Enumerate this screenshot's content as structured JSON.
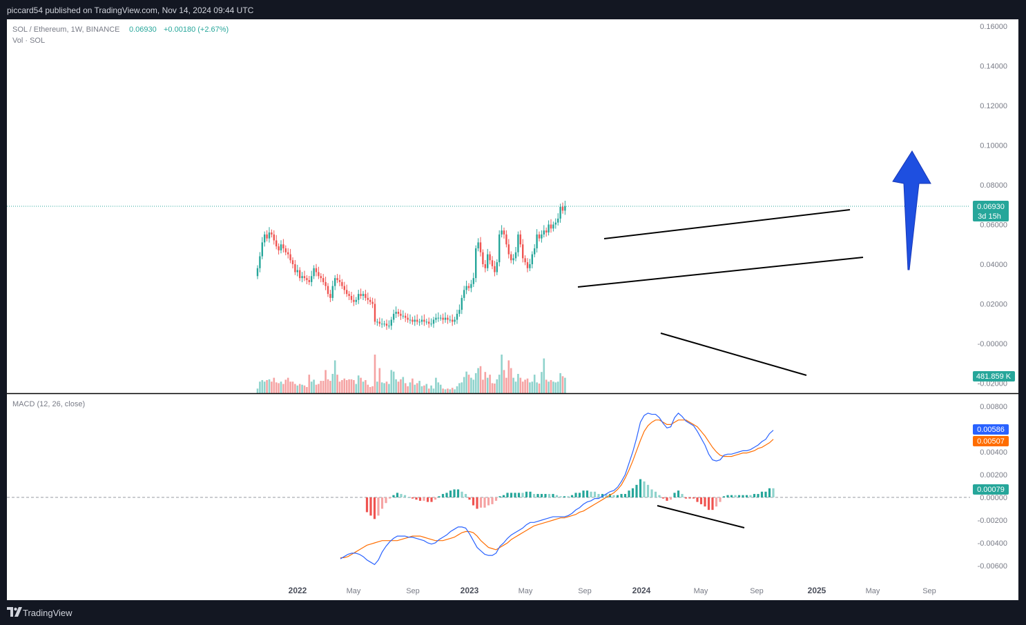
{
  "header": {
    "published": "piccard54 published on TradingView.com, Nov 14, 2024 09:44 UTC"
  },
  "footer": {
    "brand": "TradingView"
  },
  "legend": {
    "symbol": "SOL / Ethereum, 1W, BINANCE",
    "price": "0.06930",
    "change": "+0.00180 (+2.67%)",
    "vol": "Vol · SOL",
    "macd": "MACD (12, 26, close)"
  },
  "badges": {
    "last_price": "0.06930",
    "countdown": "3d 15h",
    "volume": "481.859 K",
    "macd_line": "0.00586",
    "signal_line": "0.00507",
    "histogram": "0.00079"
  },
  "colors": {
    "up": "#26a69a",
    "down": "#ef5350",
    "up_vol": "#8fd3cc",
    "down_vol": "#f5a3a3",
    "macd_line": "#2962ff",
    "signal_line": "#ff6d00",
    "arrow": "#1e4fe0",
    "background": "#131722"
  },
  "chart_data": [
    {
      "type": "candlestick",
      "title": "SOL / Ethereum, 1W, BINANCE",
      "x_labels": [
        "2022",
        "May",
        "Sep",
        "2023",
        "May",
        "Sep",
        "2024",
        "May",
        "Sep",
        "2025",
        "May",
        "Sep"
      ],
      "price_ticks": [
        "0.16000",
        "0.14000",
        "0.12000",
        "0.10000",
        "0.08000",
        "0.06000",
        "0.04000",
        "0.02000",
        "-0.00000",
        "-0.02000"
      ],
      "ylim": [
        -0.02,
        0.16
      ],
      "last_price": 0.0693,
      "series": [
        {
          "name": "SOL / Ethereum",
          "weekly_close": [
            0.038,
            0.044,
            0.051,
            0.055,
            0.053,
            0.056,
            0.055,
            0.052,
            0.049,
            0.047,
            0.05,
            0.048,
            0.046,
            0.045,
            0.042,
            0.04,
            0.036,
            0.037,
            0.033,
            0.034,
            0.033,
            0.032,
            0.031,
            0.034,
            0.038,
            0.036,
            0.034,
            0.033,
            0.031,
            0.029,
            0.025,
            0.023,
            0.029,
            0.033,
            0.032,
            0.031,
            0.029,
            0.027,
            0.025,
            0.024,
            0.022,
            0.021,
            0.022,
            0.025,
            0.024,
            0.025,
            0.023,
            0.022,
            0.021,
            0.02,
            0.011,
            0.011,
            0.01,
            0.01,
            0.01,
            0.009,
            0.009,
            0.012,
            0.015,
            0.016,
            0.015,
            0.014,
            0.014,
            0.013,
            0.012,
            0.012,
            0.011,
            0.012,
            0.011,
            0.011,
            0.012,
            0.011,
            0.011,
            0.01,
            0.01,
            0.012,
            0.013,
            0.013,
            0.013,
            0.012,
            0.013,
            0.012,
            0.012,
            0.011,
            0.012,
            0.015,
            0.017,
            0.023,
            0.027,
            0.029,
            0.028,
            0.03,
            0.033,
            0.048,
            0.051,
            0.046,
            0.04,
            0.038,
            0.045,
            0.042,
            0.039,
            0.036,
            0.041,
            0.055,
            0.057,
            0.055,
            0.05,
            0.045,
            0.042,
            0.043,
            0.046,
            0.055,
            0.05,
            0.043,
            0.041,
            0.038,
            0.04,
            0.045,
            0.048,
            0.055,
            0.053,
            0.055,
            0.057,
            0.056,
            0.06,
            0.058,
            0.06,
            0.061,
            0.063,
            0.069,
            0.067,
            0.0693
          ]
        }
      ]
    },
    {
      "type": "bar",
      "title": "Vol · SOL",
      "last_value_label": "481.859 K",
      "series": [
        {
          "name": "Vol · SOL",
          "relative_values": [
            0.12,
            0.3,
            0.34,
            0.3,
            0.34,
            0.36,
            0.3,
            0.4,
            0.28,
            0.26,
            0.3,
            0.24,
            0.35,
            0.4,
            0.3,
            0.3,
            0.24,
            0.2,
            0.24,
            0.22,
            0.2,
            0.16,
            0.48,
            0.3,
            0.35,
            0.22,
            0.24,
            0.32,
            0.32,
            0.6,
            0.36,
            0.32,
            0.5,
            0.85,
            0.48,
            0.3,
            0.34,
            0.38,
            0.34,
            0.36,
            0.36,
            0.34,
            0.24,
            0.46,
            0.4,
            0.3,
            0.34,
            0.22,
            0.16,
            0.18,
            1.0,
            0.3,
            0.65,
            0.28,
            0.26,
            0.3,
            0.24,
            0.6,
            0.56,
            0.36,
            0.3,
            0.36,
            0.42,
            0.26,
            0.18,
            0.28,
            0.38,
            0.22,
            0.26,
            0.32,
            0.18,
            0.2,
            0.24,
            0.12,
            0.2,
            0.12,
            0.4,
            0.28,
            0.22,
            0.12,
            0.1,
            0.12,
            0.1,
            0.14,
            0.1,
            0.18,
            0.26,
            0.28,
            0.42,
            0.56,
            0.48,
            0.4,
            0.35,
            0.52,
            0.65,
            0.7,
            0.35,
            0.55,
            0.4,
            0.48,
            0.26,
            0.25,
            0.36,
            0.48,
            1.0,
            0.6,
            0.4,
            0.85,
            0.65,
            0.4,
            0.3,
            0.5,
            0.4,
            0.3,
            0.35,
            0.38,
            0.28,
            0.3,
            0.48,
            0.28,
            0.25,
            0.55,
            0.9,
            0.35,
            0.3,
            0.34,
            0.3,
            0.28,
            0.3,
            0.52,
            0.44,
            0.4
          ]
        }
      ]
    },
    {
      "type": "line",
      "title": "MACD (12, 26, close)",
      "ticks": [
        "0.00800",
        "0.00600",
        "0.00400",
        "0.00200",
        "0.00000",
        "-0.00200",
        "-0.00400",
        "-0.00600"
      ],
      "ylim": [
        -0.0069,
        0.0084
      ],
      "series": [
        {
          "name": "MACD",
          "values": [
            -0.0054,
            -0.0052,
            -0.005,
            -0.0049,
            -0.0049,
            -0.005,
            -0.0052,
            -0.0055,
            -0.0057,
            -0.0059,
            -0.0055,
            -0.0048,
            -0.0043,
            -0.0039,
            -0.0036,
            -0.0034,
            -0.0034,
            -0.0034,
            -0.0035,
            -0.0035,
            -0.0036,
            -0.0037,
            -0.0038,
            -0.004,
            -0.0041,
            -0.004,
            -0.0037,
            -0.0035,
            -0.0033,
            -0.003,
            -0.0028,
            -0.0026,
            -0.0026,
            -0.0027,
            -0.0032,
            -0.0038,
            -0.0044,
            -0.0047,
            -0.005,
            -0.0051,
            -0.0051,
            -0.0049,
            -0.0043,
            -0.004,
            -0.0036,
            -0.0033,
            -0.0031,
            -0.0029,
            -0.0027,
            -0.0024,
            -0.0022,
            -0.0022,
            -0.0021,
            -0.002,
            -0.0019,
            -0.0018,
            -0.0017,
            -0.0017,
            -0.0017,
            -0.0017,
            -0.0016,
            -0.0014,
            -0.0011,
            -0.0009,
            -0.0006,
            -0.0004,
            -0.0003,
            -0.0001,
            -0.0001,
            0.0001,
            0.0003,
            0.0005,
            0.0006,
            0.0009,
            0.0014,
            0.002,
            0.003,
            0.004,
            0.0052,
            0.0066,
            0.0072,
            0.0074,
            0.0073,
            0.0073,
            0.007,
            0.0065,
            0.0061,
            0.0062,
            0.007,
            0.0074,
            0.0071,
            0.0067,
            0.0065,
            0.0063,
            0.0058,
            0.0052,
            0.0046,
            0.0038,
            0.0033,
            0.0032,
            0.0033,
            0.0037,
            0.0038,
            0.0038,
            0.0039,
            0.004,
            0.0041,
            0.0041,
            0.0042,
            0.0044,
            0.0046,
            0.0049,
            0.0051,
            0.0056,
            0.0059
          ]
        },
        {
          "name": "Signal",
          "values": [
            -0.0053,
            -0.0053,
            -0.0052,
            -0.005,
            -0.0048,
            -0.0046,
            -0.0044,
            -0.0042,
            -0.0041,
            -0.004,
            -0.0039,
            -0.0038,
            -0.0038,
            -0.0038,
            -0.0038,
            -0.0038,
            -0.0037,
            -0.0036,
            -0.0035,
            -0.0034,
            -0.0034,
            -0.0034,
            -0.0035,
            -0.0036,
            -0.0037,
            -0.0038,
            -0.0038,
            -0.0038,
            -0.0037,
            -0.0036,
            -0.0035,
            -0.0033,
            -0.0031,
            -0.003,
            -0.003,
            -0.0031,
            -0.0034,
            -0.0038,
            -0.0041,
            -0.0044,
            -0.0045,
            -0.0046,
            -0.0044,
            -0.0042,
            -0.004,
            -0.0037,
            -0.0035,
            -0.0033,
            -0.0031,
            -0.0029,
            -0.0027,
            -0.0025,
            -0.0024,
            -0.0023,
            -0.0022,
            -0.0021,
            -0.002,
            -0.0019,
            -0.0018,
            -0.0018,
            -0.0017,
            -0.0016,
            -0.0015,
            -0.0013,
            -0.0012,
            -0.001,
            -0.0008,
            -0.0006,
            -0.0004,
            -0.0002,
            0.0,
            0.0002,
            0.0004,
            0.0007,
            0.0011,
            0.0017,
            0.0024,
            0.0032,
            0.0041,
            0.005,
            0.0058,
            0.0063,
            0.0066,
            0.0068,
            0.0068,
            0.0066,
            0.0064,
            0.0064,
            0.0066,
            0.0068,
            0.0068,
            0.0068,
            0.0066,
            0.0064,
            0.0062,
            0.0058,
            0.0054,
            0.0049,
            0.0044,
            0.004,
            0.0037,
            0.0036,
            0.0036,
            0.0036,
            0.0037,
            0.0038,
            0.0039,
            0.0039,
            0.004,
            0.0041,
            0.0043,
            0.0044,
            0.0046,
            0.0048,
            0.0051
          ]
        }
      ]
    }
  ]
}
